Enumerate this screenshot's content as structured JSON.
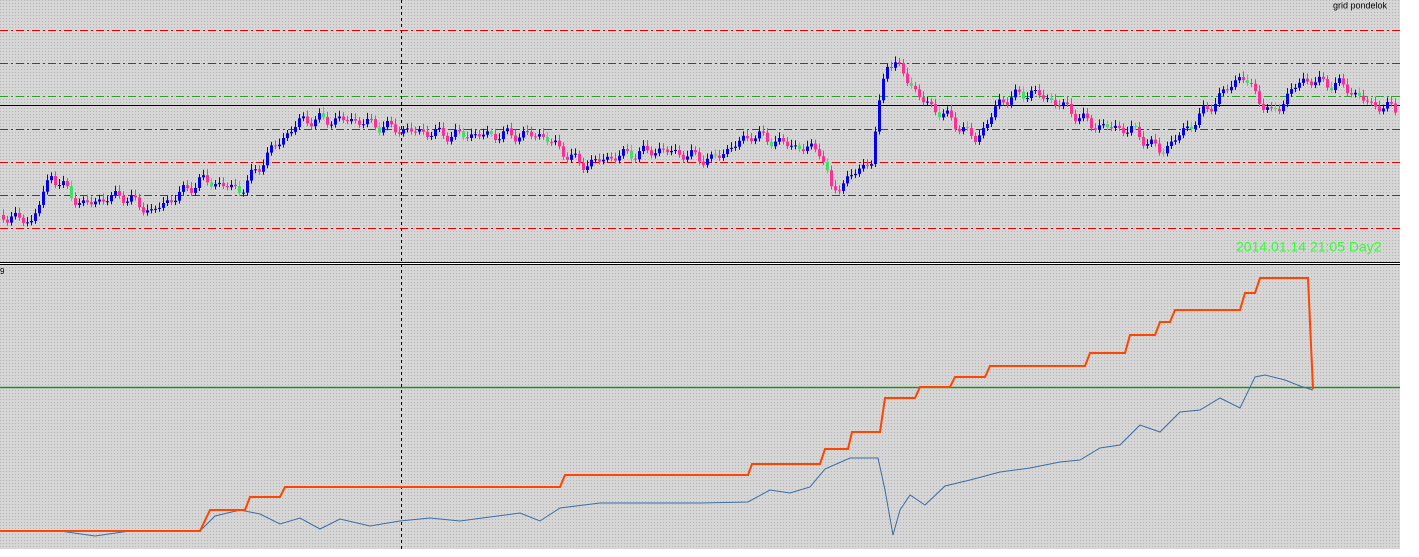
{
  "header": {
    "label": "grid pondelok"
  },
  "overlay": {
    "timestamp": "2014.01.14 21:05 Day2"
  },
  "indicator": {
    "label": "9"
  }
}
